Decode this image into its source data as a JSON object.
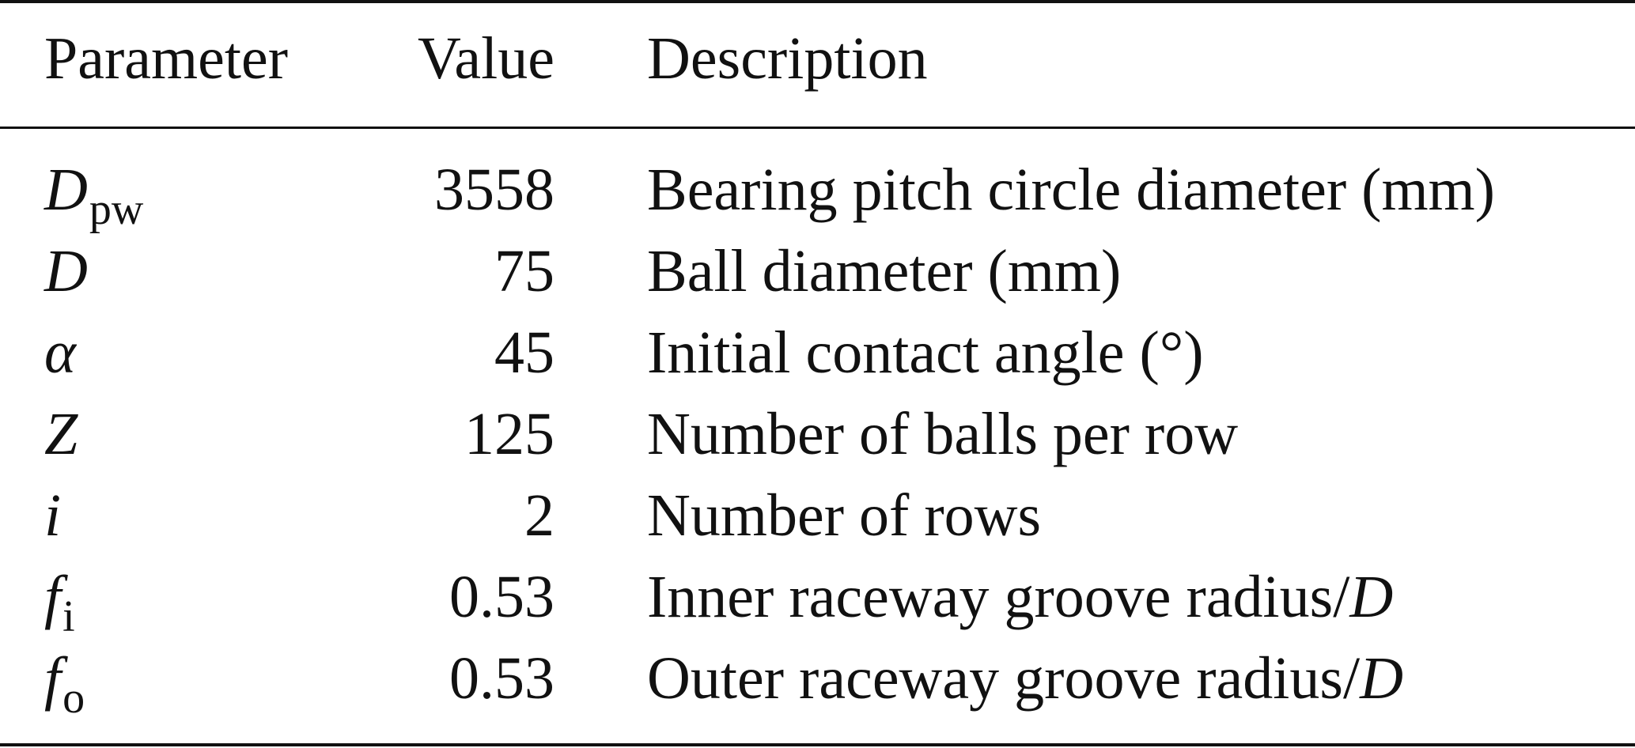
{
  "table": {
    "headers": {
      "parameter": "Parameter",
      "value": "Value",
      "description": "Description"
    },
    "rows": [
      {
        "symbol": "D",
        "subscript": "pw",
        "value": "3558",
        "description": "Bearing pitch circle diameter (mm)",
        "desc_suffix": ""
      },
      {
        "symbol": "D",
        "subscript": "",
        "value": "75",
        "description": "Ball diameter (mm)",
        "desc_suffix": ""
      },
      {
        "symbol": "α",
        "subscript": "",
        "value": "45",
        "description": "Initial contact angle (°)",
        "desc_suffix": ""
      },
      {
        "symbol": "Z",
        "subscript": "",
        "value": "125",
        "description": "Number of balls per row",
        "desc_suffix": ""
      },
      {
        "symbol": "i",
        "subscript": "",
        "value": "2",
        "description": "Number of rows",
        "desc_suffix": ""
      },
      {
        "symbol": "f",
        "subscript": "i",
        "value": "0.53",
        "description": "Inner raceway groove radius/",
        "desc_suffix": "D"
      },
      {
        "symbol": "f",
        "subscript": "o",
        "value": "0.53",
        "description": "Outer raceway groove radius/",
        "desc_suffix": "D"
      }
    ]
  }
}
